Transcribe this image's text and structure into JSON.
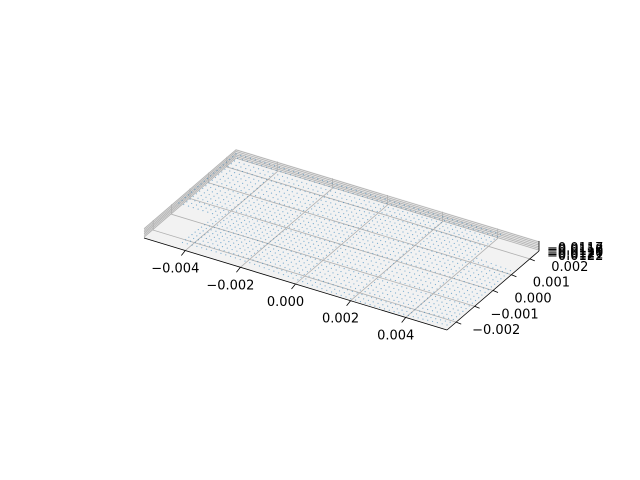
{
  "chart_data": {
    "type": "scatter",
    "projection": "3d",
    "grid": true,
    "title": "",
    "xlabel": "",
    "ylabel": "",
    "zlabel": "",
    "xlim": [
      -0.0055,
      0.0055
    ],
    "ylim": [
      -0.0025,
      0.0025
    ],
    "zlim": [
      -0.01225,
      -0.01165
    ],
    "x_ticks": [
      "−0.004",
      "−0.002",
      "0.000",
      "0.002",
      "0.004"
    ],
    "x_tick_values": [
      -0.004,
      -0.002,
      0.0,
      0.002,
      0.004
    ],
    "y_ticks": [
      "−0.002",
      "−0.001",
      "0.000",
      "0.001",
      "0.002"
    ],
    "y_tick_values": [
      -0.002,
      -0.001,
      0.0,
      0.001,
      0.002
    ],
    "z_ticks": [
      "−0.0122",
      "−0.0121",
      "−0.0120",
      "−0.0119",
      "−0.0118",
      "−0.0117"
    ],
    "z_tick_values": [
      -0.0122,
      -0.0121,
      -0.012,
      -0.0119,
      -0.0118,
      -0.0117
    ],
    "series": [
      {
        "marker_color": "#1f77b4",
        "marker_size": 0.6,
        "grid_x": [
          -0.0055,
          0.0055,
          64
        ],
        "grid_y": [
          -0.0025,
          0.0025,
          30
        ],
        "description_note_free": true
      }
    ]
  }
}
